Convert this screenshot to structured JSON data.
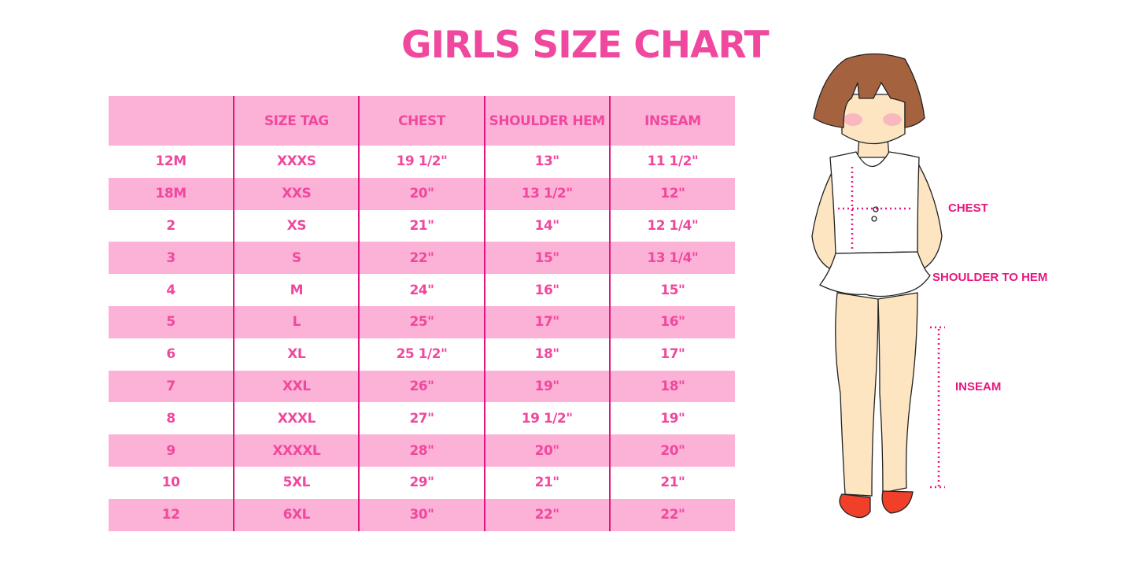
{
  "title": "GIRLS SIZE CHART",
  "table": {
    "headers": [
      "",
      "SIZE TAG",
      "CHEST",
      "SHOULDER HEM",
      "INSEAM"
    ],
    "rows": [
      [
        "12M",
        "XXXS",
        "19 1/2\"",
        "13\"",
        "11 1/2\""
      ],
      [
        "18M",
        "XXS",
        "20\"",
        "13 1/2\"",
        "12\""
      ],
      [
        "2",
        "XS",
        "21\"",
        "14\"",
        "12 1/4\""
      ],
      [
        "3",
        "S",
        "22\"",
        "15\"",
        "13 1/4\""
      ],
      [
        "4",
        "M",
        "24\"",
        "16\"",
        "15\""
      ],
      [
        "5",
        "L",
        "25\"",
        "17\"",
        "16\""
      ],
      [
        "6",
        "XL",
        "25 1/2\"",
        "18\"",
        "17\""
      ],
      [
        "7",
        "XXL",
        "26\"",
        "19\"",
        "18\""
      ],
      [
        "8",
        "XXXL",
        "27\"",
        "19 1/2\"",
        "19\""
      ],
      [
        "9",
        "XXXXL",
        "28\"",
        "20\"",
        "20\""
      ],
      [
        "10",
        "5XL",
        "29\"",
        "21\"",
        "21\""
      ],
      [
        "12",
        "6XL",
        "30\"",
        "22\"",
        "22\""
      ]
    ]
  },
  "figure": {
    "labels": {
      "chest": "CHEST",
      "shoulder_to_hem": "SHOULDER TO HEM",
      "inseam": "INSEAM"
    }
  },
  "colors": {
    "accent": "#f0489e",
    "row_pink": "#fcb1d6",
    "divider": "#e0157f",
    "hair": "#a5623f",
    "skin": "#fde5c2",
    "shoes": "#f0402a"
  }
}
